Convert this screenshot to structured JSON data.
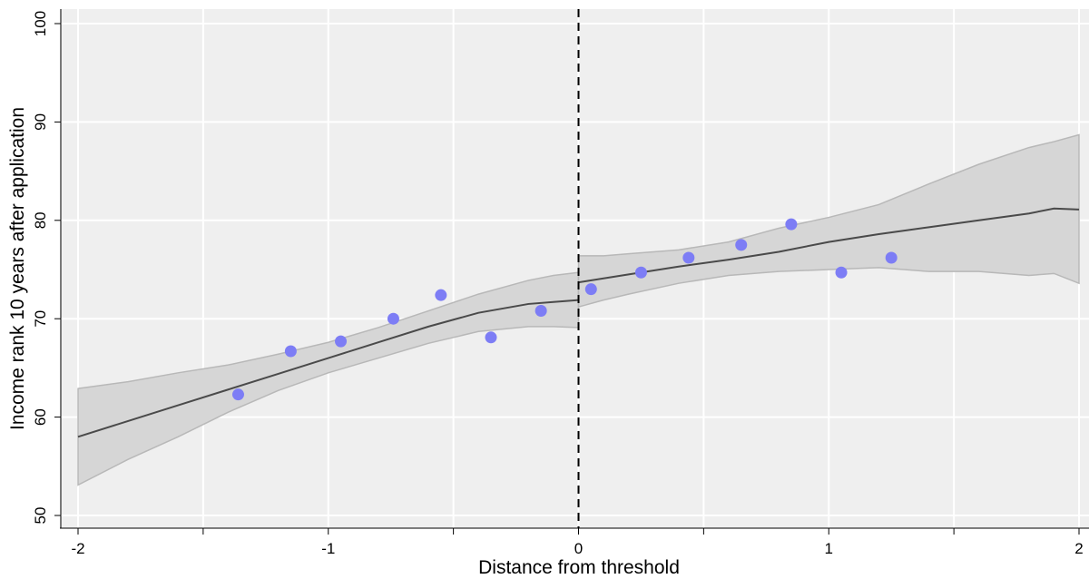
{
  "chart_data": {
    "type": "scatter",
    "title": "",
    "xlabel": "Distance from threshold",
    "ylabel": "Income rank 10 years after application",
    "xlim": [
      -2,
      2
    ],
    "ylim": [
      50,
      100
    ],
    "x_ticks": [
      -2,
      -1,
      0,
      1,
      2
    ],
    "x_minor_ticks": [
      -1.5,
      -0.5,
      0.5,
      1.5
    ],
    "y_ticks": [
      50,
      60,
      70,
      80,
      90,
      100
    ],
    "grid": true,
    "threshold_line": {
      "x": 0,
      "style": "dashed"
    },
    "colors": {
      "plot_background": "#efefef",
      "grid": "#ffffff",
      "band_fill": "#d6d6d6",
      "band_edge": "#b8b8b8",
      "fit_line": "#4a4a4a",
      "points": "#7d7df5",
      "threshold": "#000000"
    },
    "series": [
      {
        "kind": "points",
        "x": [
          -1.36,
          -1.15,
          -0.95,
          -0.74,
          -0.55,
          -0.35,
          -0.15,
          0.05,
          0.25,
          0.44,
          0.65,
          0.85,
          1.05,
          1.25
        ],
        "y": [
          62.3,
          66.7,
          67.7,
          70.0,
          72.4,
          68.1,
          70.8,
          73.0,
          74.7,
          76.2,
          77.5,
          79.6,
          74.7,
          76.2
        ]
      },
      {
        "kind": "fit_left",
        "x": [
          -2.0,
          -1.8,
          -1.6,
          -1.4,
          -1.2,
          -1.0,
          -0.8,
          -0.6,
          -0.4,
          -0.2,
          -0.1,
          0.0
        ],
        "y": [
          58.0,
          59.6,
          61.2,
          62.8,
          64.4,
          66.0,
          67.6,
          69.2,
          70.6,
          71.5,
          71.7,
          71.9
        ],
        "lower": [
          53.1,
          55.7,
          58.0,
          60.5,
          62.7,
          64.5,
          66.0,
          67.5,
          68.7,
          69.2,
          69.2,
          69.1
        ],
        "upper": [
          62.9,
          63.6,
          64.5,
          65.3,
          66.4,
          67.6,
          69.1,
          70.8,
          72.5,
          73.9,
          74.4,
          74.7
        ]
      },
      {
        "kind": "fit_right",
        "x": [
          0.0,
          0.1,
          0.2,
          0.4,
          0.6,
          0.8,
          1.0,
          1.2,
          1.4,
          1.6,
          1.8,
          1.9,
          2.0
        ],
        "y": [
          73.7,
          74.1,
          74.5,
          75.3,
          76.0,
          76.8,
          77.8,
          78.6,
          79.3,
          80.0,
          80.7,
          81.2,
          81.1
        ],
        "lower": [
          71.2,
          71.9,
          72.5,
          73.6,
          74.4,
          74.8,
          75.0,
          75.2,
          74.8,
          74.8,
          74.4,
          74.6,
          73.6
        ],
        "upper": [
          76.4,
          76.4,
          76.6,
          77.0,
          77.8,
          79.2,
          80.3,
          81.6,
          83.7,
          85.7,
          87.4,
          88.0,
          88.7
        ]
      }
    ]
  }
}
